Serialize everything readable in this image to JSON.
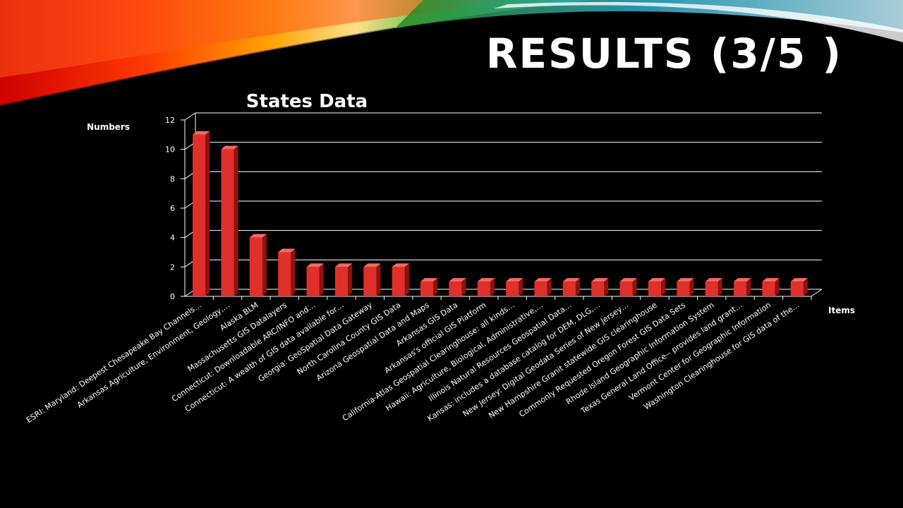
{
  "slide": {
    "title": "RESULTS (3/5 )"
  },
  "colors": {
    "background": "#000000",
    "bar_front": "#e0302b",
    "bar_side": "#8e1210",
    "bar_top": "#f26b62",
    "gridline": "#ffffff",
    "text": "#ffffff"
  },
  "chart_data": {
    "type": "bar",
    "title": "States Data",
    "xlabel": "Items",
    "ylabel": "Numbers",
    "ylim": [
      0,
      12
    ],
    "yticks": [
      0,
      2,
      4,
      6,
      8,
      10,
      12
    ],
    "grid": true,
    "legend": "none",
    "categories": [
      "ESRI: Maryland: Deepest Chesapeake Bay Channels…",
      "Arkansas Agriculture, Environment, Geology,…",
      "Alaska BLM",
      "Massachusetts GIS Datalayers",
      "Connecticut: Downloadable ARC/INFO and…",
      "Connecticut: A wealth of GIS data available for…",
      "Georgia: GeoSpatial Data Gateway",
      "North Carolina County GIS Data",
      "Arizona Geospatial Data and Maps",
      "Arkansas GIS Data",
      "Arkansas's official GIS Platform",
      "California-Atlas Geospatial Clearinghouse: all kinds…",
      "Hawaii: Agriculture, Biological, Administrative,…",
      "Illinois Natural Resources Geospatial Data…",
      "Kansas: includes a database catalog for DEM, DLG,…",
      "New Jersey: Digital Geodata Series of New Jersey…",
      "New Hampshire Granit statewide GIS clearinghouse",
      "Commonly Requested Oregon Forest GIS Data Sets",
      "Rhode Island Geographic Information System",
      "Texas General Land Office-- provides land grant…",
      "Vermont Center for Geographic Information",
      "Washington Clearinghouse for GIS data of the…"
    ],
    "values": [
      11,
      10,
      4,
      3,
      2,
      2,
      2,
      2,
      1,
      1,
      1,
      1,
      1,
      1,
      1,
      1,
      1,
      1,
      1,
      1,
      1,
      1
    ]
  }
}
